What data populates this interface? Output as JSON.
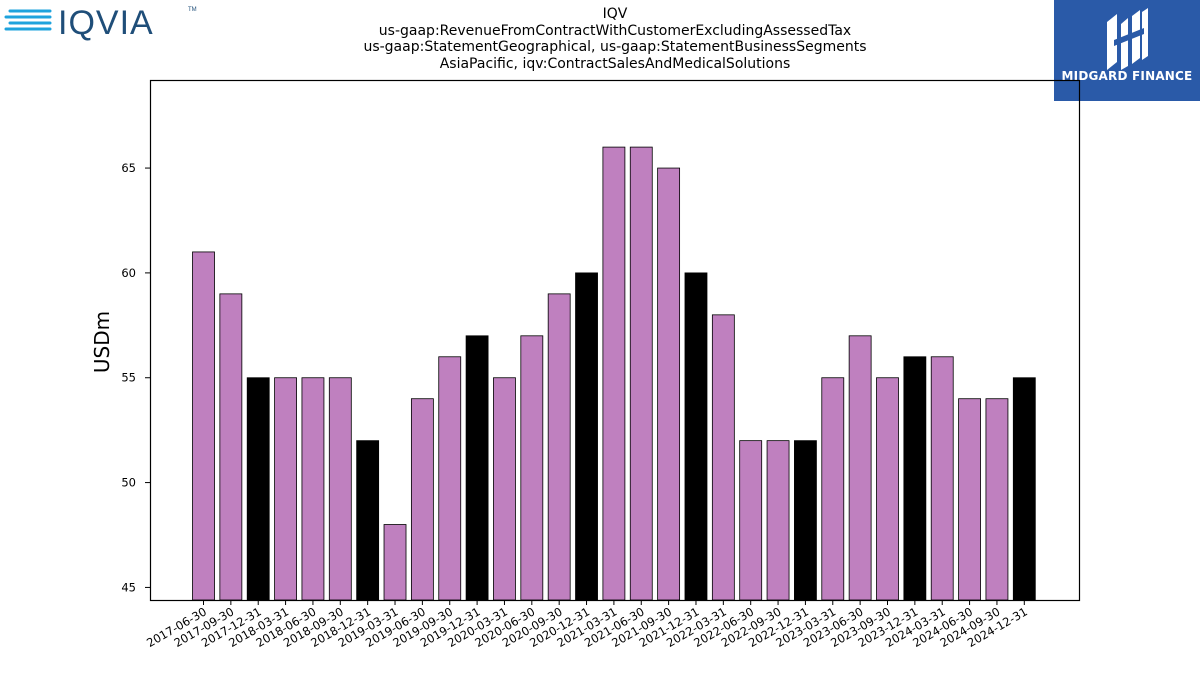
{
  "header": {
    "brand_logo_text": "IQVIA",
    "brand_logo_tm": "TM",
    "badge_name": "MIDGARD FINANCE"
  },
  "colors": {
    "bar_default": "#bf80bf",
    "bar_year_end": "#000000",
    "bar_edge": "#000000",
    "brand_blue": "#2a5aa8",
    "logo_cyan": "#1ea3dd",
    "logo_navy": "#1f4e79"
  },
  "chart_data": {
    "type": "bar",
    "title": [
      "IQV",
      "us-gaap:RevenueFromContractWithCustomerExcludingAssessedTax",
      "us-gaap:StatementGeographical, us-gaap:StatementBusinessSegments",
      "AsiaPacific, iqv:ContractSalesAndMedicalSolutions"
    ],
    "xlabel": "",
    "ylabel": "USDm",
    "ylim": [
      44.4,
      69.2
    ],
    "yticks": [
      45,
      50,
      55,
      60,
      65
    ],
    "grid": false,
    "legend": "none",
    "categories": [
      "2017-06-30",
      "2017-09-30",
      "2017-12-31",
      "2018-03-31",
      "2018-06-30",
      "2018-09-30",
      "2018-12-31",
      "2019-03-31",
      "2019-06-30",
      "2019-09-30",
      "2019-12-31",
      "2020-03-31",
      "2020-06-30",
      "2020-09-30",
      "2020-12-31",
      "2021-03-31",
      "2021-06-30",
      "2021-09-30",
      "2021-12-31",
      "2022-03-31",
      "2022-06-30",
      "2022-09-30",
      "2022-12-31",
      "2023-03-31",
      "2023-06-30",
      "2023-09-30",
      "2023-12-31",
      "2024-03-31",
      "2024-06-30",
      "2024-09-30",
      "2024-12-31"
    ],
    "values": [
      61,
      59,
      55,
      55,
      55,
      55,
      52,
      48,
      54,
      56,
      57,
      55,
      57,
      59,
      60,
      66,
      66,
      65,
      60,
      58,
      52,
      52,
      52,
      55,
      57,
      55,
      56,
      56,
      54,
      54,
      55
    ]
  }
}
